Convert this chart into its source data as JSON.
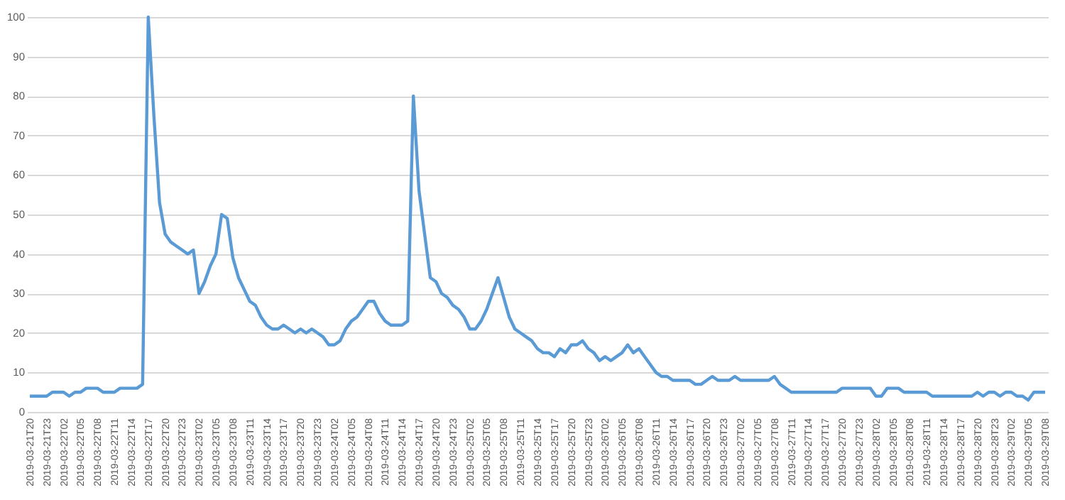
{
  "chart_data": {
    "type": "line",
    "categories": [
      "2019-03-21T20",
      null,
      null,
      "2019-03-21T23",
      null,
      null,
      "2019-03-22T02",
      null,
      null,
      "2019-03-22T05",
      null,
      null,
      "2019-03-22T08",
      null,
      null,
      "2019-03-22T11",
      null,
      null,
      "2019-03-22T14",
      null,
      null,
      "2019-03-22T17",
      null,
      null,
      "2019-03-22T20",
      null,
      null,
      "2019-03-22T23",
      null,
      null,
      "2019-03-23T02",
      null,
      null,
      "2019-03-23T05",
      null,
      null,
      "2019-03-23T08",
      null,
      null,
      "2019-03-23T11",
      null,
      null,
      "2019-03-23T14",
      null,
      null,
      "2019-03-23T17",
      null,
      null,
      "2019-03-23T20",
      null,
      null,
      "2019-03-23T23",
      null,
      null,
      "2019-03-24T02",
      null,
      null,
      "2019-03-24T05",
      null,
      null,
      "2019-03-24T08",
      null,
      null,
      "2019-03-24T11",
      null,
      null,
      "2019-03-24T14",
      null,
      null,
      "2019-03-24T17",
      null,
      null,
      "2019-03-24T20",
      null,
      null,
      "2019-03-24T23",
      null,
      null,
      "2019-03-25T02",
      null,
      null,
      "2019-03-25T05",
      null,
      null,
      "2019-03-25T08",
      null,
      null,
      "2019-03-25T11",
      null,
      null,
      "2019-03-25T14",
      null,
      null,
      "2019-03-25T17",
      null,
      null,
      "2019-03-25T20",
      null,
      null,
      "2019-03-25T23",
      null,
      null,
      "2019-03-26T02",
      null,
      null,
      "2019-03-26T05",
      null,
      null,
      "2019-03-26T08",
      null,
      null,
      "2019-03-26T11",
      null,
      null,
      "2019-03-26T14",
      null,
      null,
      "2019-03-26T17",
      null,
      null,
      "2019-03-26T20",
      null,
      null,
      "2019-03-26T23",
      null,
      null,
      "2019-03-27T02",
      null,
      null,
      "2019-03-27T05",
      null,
      null,
      "2019-03-27T08",
      null,
      null,
      "2019-03-27T11",
      null,
      null,
      "2019-03-27T14",
      null,
      null,
      "2019-03-27T17",
      null,
      null,
      "2019-03-27T20",
      null,
      null,
      "2019-03-27T23",
      null,
      null,
      "2019-03-28T02",
      null,
      null,
      "2019-03-28T05",
      null,
      null,
      "2019-03-28T08",
      null,
      null,
      "2019-03-28T11",
      null,
      null,
      "2019-03-28T14",
      null,
      null,
      "2019-03-28T17",
      null,
      null,
      "2019-03-28T20",
      null,
      null,
      "2019-03-28T23",
      null,
      null,
      "2019-03-29T02",
      null,
      null,
      "2019-03-29T05",
      null,
      null,
      "2019-03-29T08"
    ],
    "series": [
      {
        "color": "#5b9bd5",
        "values": [
          4,
          4,
          4,
          4,
          5,
          5,
          5,
          4,
          5,
          5,
          6,
          6,
          6,
          5,
          5,
          5,
          6,
          6,
          6,
          6,
          7,
          100,
          75,
          53,
          45,
          43,
          42,
          41,
          40,
          41,
          30,
          33,
          37,
          40,
          50,
          49,
          39,
          34,
          31,
          28,
          27,
          24,
          22,
          21,
          21,
          22,
          21,
          20,
          21,
          20,
          21,
          20,
          19,
          17,
          17,
          18,
          21,
          23,
          24,
          26,
          28,
          28,
          25,
          23,
          22,
          22,
          22,
          23,
          80,
          56,
          45,
          34,
          33,
          30,
          29,
          27,
          26,
          24,
          21,
          21,
          23,
          26,
          30,
          34,
          29,
          24,
          21,
          20,
          19,
          18,
          16,
          15,
          15,
          14,
          16,
          15,
          17,
          17,
          18,
          16,
          15,
          13,
          14,
          13,
          14,
          15,
          17,
          15,
          16,
          14,
          12,
          10,
          9,
          9,
          8,
          8,
          8,
          8,
          7,
          7,
          8,
          9,
          8,
          8,
          8,
          9,
          8,
          8,
          8,
          8,
          8,
          8,
          9,
          7,
          6,
          5,
          5,
          5,
          5,
          5,
          5,
          5,
          5,
          5,
          6,
          6,
          6,
          6,
          6,
          6,
          4,
          4,
          6,
          6,
          6,
          5,
          5,
          5,
          5,
          5,
          4,
          4,
          4,
          4,
          4,
          4,
          4,
          4,
          5,
          4,
          5,
          5,
          4,
          5,
          5,
          4,
          4,
          3,
          5,
          5,
          5
        ]
      }
    ],
    "ylim": [
      0,
      100
    ],
    "yticks": [
      0,
      10,
      20,
      30,
      40,
      50,
      60,
      70,
      80,
      90,
      100
    ],
    "grid": "y",
    "line_style": "solid",
    "marker": "none"
  }
}
